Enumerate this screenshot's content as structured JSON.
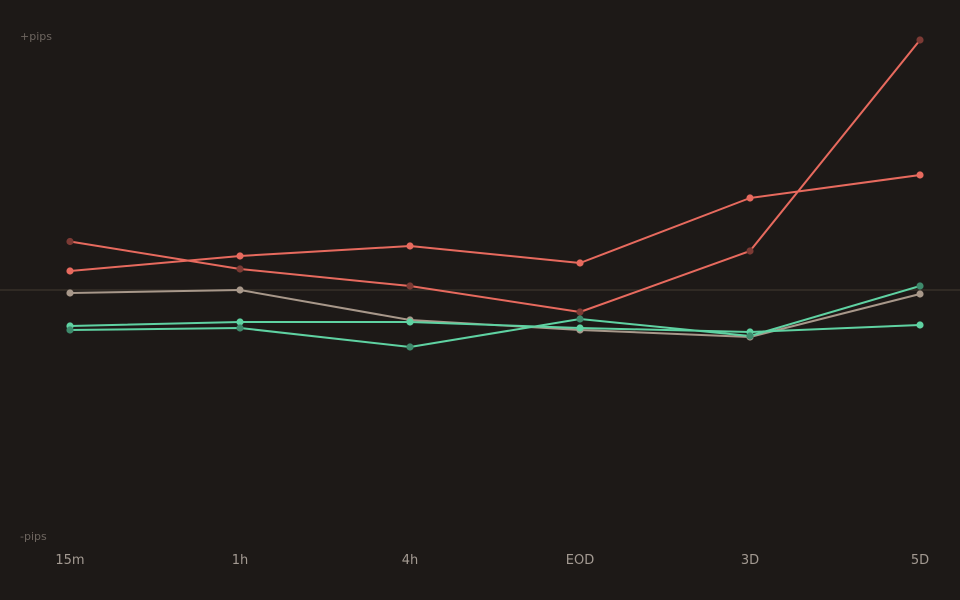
{
  "chart_data": {
    "type": "line",
    "title": "",
    "xlabel": "",
    "ylabel_top": "+pips",
    "ylabel_bottom": "-pips",
    "categories": [
      "15m",
      "1h",
      "4h",
      "EOD",
      "3D",
      "5D"
    ],
    "ylim": [
      -100,
      100
    ],
    "baseline": 0,
    "grid": false,
    "legend": "none",
    "series": [
      {
        "color": "#e76a5e",
        "point_color": "#7c3a34",
        "values": [
          19.4,
          8.4,
          1.6,
          -8.8,
          15.6,
          100
        ]
      },
      {
        "color": "#e76a5e",
        "point_color": "#e76a5e",
        "values": [
          7.6,
          13.6,
          17.6,
          10.8,
          36.8,
          46
        ]
      },
      {
        "color": "#a8988a",
        "point_color": "#a8988a",
        "values": [
          -1.2,
          0,
          -12,
          -16,
          -18.8,
          -1.6
        ]
      },
      {
        "color": "#5fd2a2",
        "point_color": "#5fd2a2",
        "values": [
          -14.4,
          -12.8,
          -12.8,
          -15.2,
          -16.8,
          -14
        ]
      },
      {
        "color": "#5fd2a2",
        "point_color": "#3e8a6c",
        "values": [
          -16,
          -15.2,
          -22.8,
          -11.6,
          -18.4,
          1.6
        ]
      }
    ],
    "colors": {
      "background": "#1d1917",
      "baseline": "#363029",
      "axis_text": "#6e6660",
      "tick_text": "#a39a92"
    }
  }
}
